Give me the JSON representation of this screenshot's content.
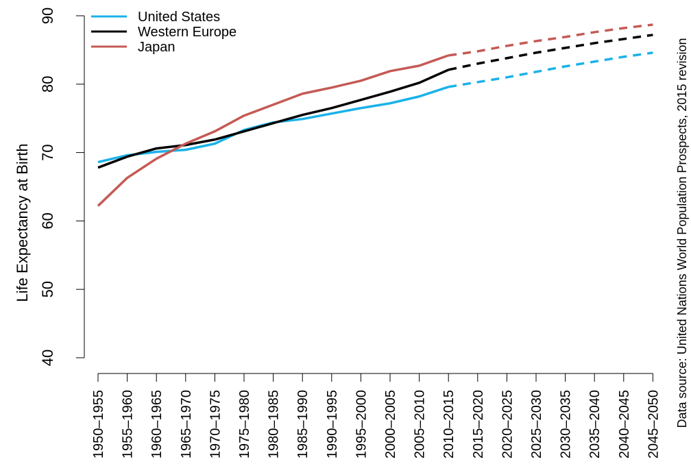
{
  "chart_data": {
    "type": "line",
    "ylabel": "Life Expectancy at Birth",
    "source_note": "Data source: United Nations World Population Prospects, 2015 revision",
    "ylim": [
      40,
      90
    ],
    "yticks": [
      40,
      50,
      60,
      70,
      80,
      90
    ],
    "categories": [
      "1950–1955",
      "1955–1960",
      "1960–1965",
      "1965–1970",
      "1970–1975",
      "1975–1980",
      "1980–1985",
      "1985–1990",
      "1990–1995",
      "1995–2000",
      "2000–2005",
      "2005–2010",
      "2010–2015",
      "2015–2020",
      "2020–2025",
      "2025–2030",
      "2030–2035",
      "2035–2040",
      "2040–2045",
      "2045–2050"
    ],
    "observed_through_index": 12,
    "legend_position": "top-left",
    "grid": false,
    "series": [
      {
        "name": "United States",
        "color": "#1AB2E8",
        "values": [
          68.6,
          69.6,
          70.1,
          70.4,
          71.3,
          73.3,
          74.4,
          74.9,
          75.7,
          76.5,
          77.2,
          78.2,
          79.6,
          80.3,
          81.0,
          81.8,
          82.6,
          83.3,
          84.0,
          84.6
        ]
      },
      {
        "name": "Western Europe",
        "color": "#000000",
        "values": [
          67.8,
          69.4,
          70.6,
          71.1,
          71.9,
          73.1,
          74.3,
          75.5,
          76.5,
          77.7,
          78.9,
          80.2,
          82.1,
          83.0,
          83.8,
          84.6,
          85.3,
          86.0,
          86.6,
          87.2
        ]
      },
      {
        "name": "Japan",
        "color": "#C45A55",
        "values": [
          62.2,
          66.3,
          69.1,
          71.3,
          73.1,
          75.4,
          77.0,
          78.6,
          79.5,
          80.5,
          81.9,
          82.7,
          84.2,
          84.8,
          85.6,
          86.3,
          86.9,
          87.6,
          88.2,
          88.7
        ]
      }
    ]
  }
}
